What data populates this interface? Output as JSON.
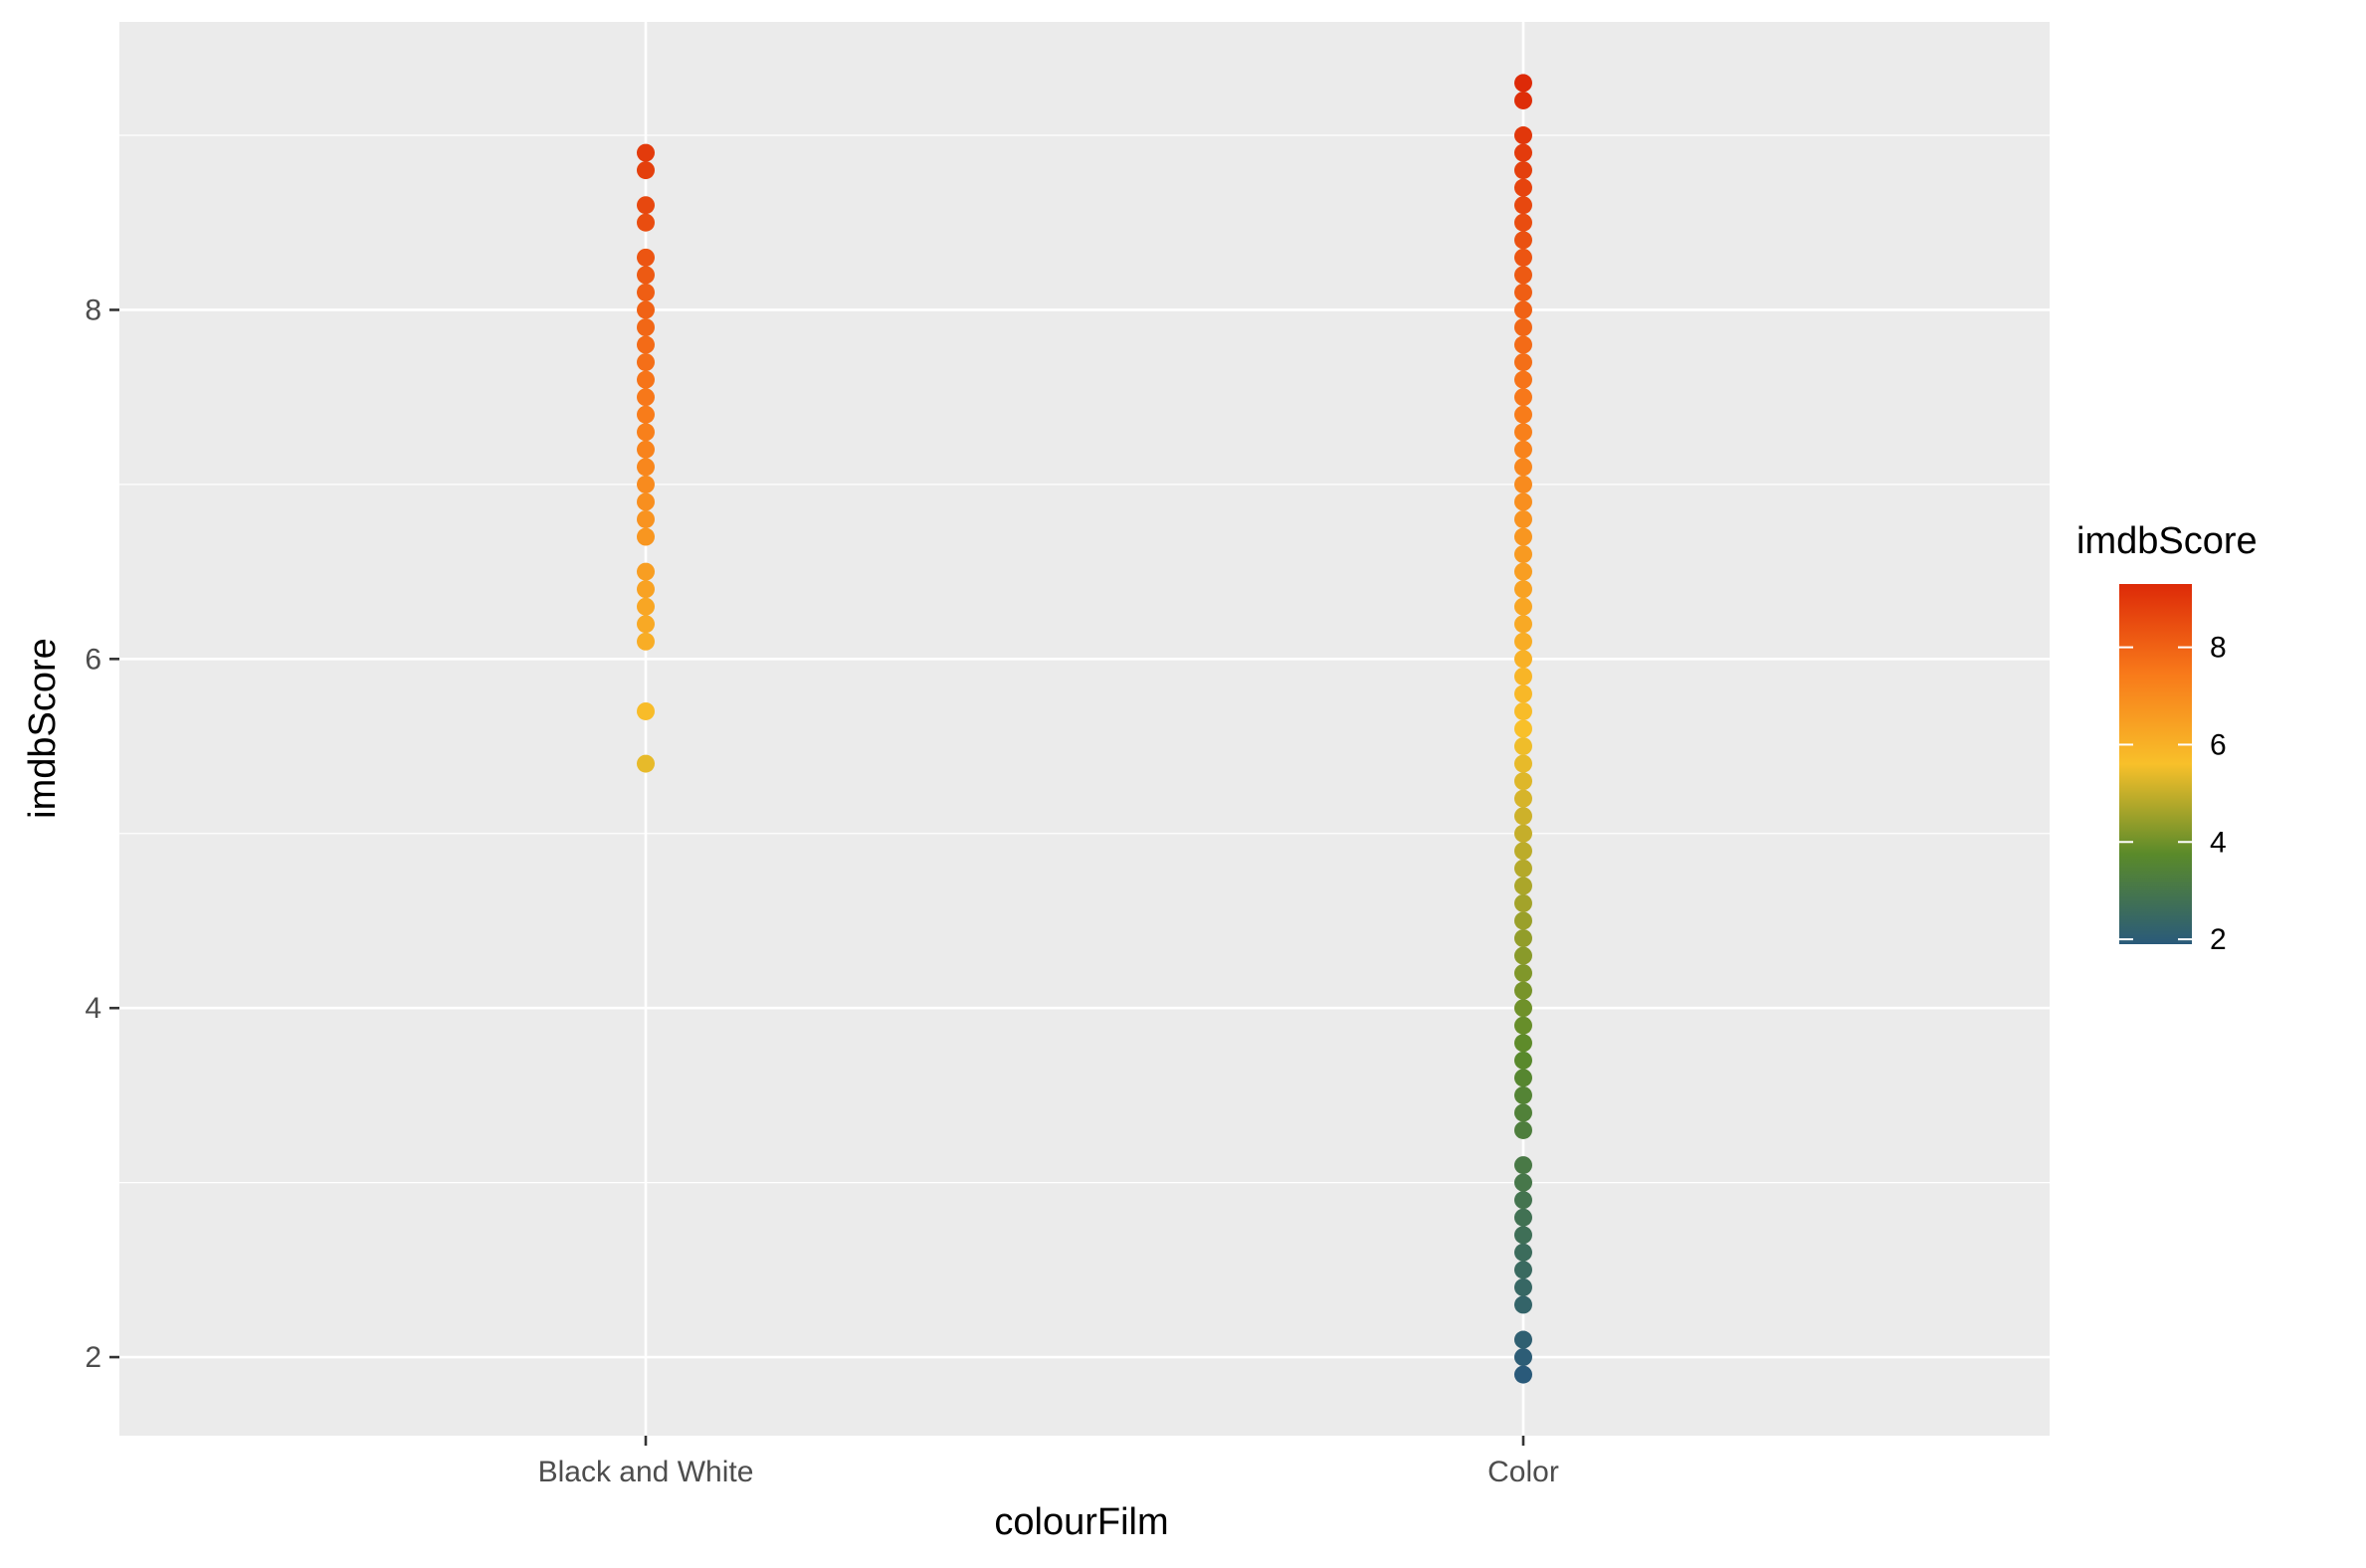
{
  "chart_data": {
    "type": "scatter",
    "xlabel": "colourFilm",
    "ylabel": "imdbScore",
    "categories": [
      "Black and White",
      "Color"
    ],
    "ylim": [
      1.55,
      9.65
    ],
    "y_ticks": [
      2,
      4,
      6,
      8
    ],
    "grid": true,
    "legend_placement": "right",
    "legend": {
      "title": "imdbScore",
      "ticks": [
        2,
        4,
        6,
        8
      ],
      "range": [
        1.9,
        9.3
      ],
      "gradient_colors": [
        "#2a5a7a",
        "#5a8a2a",
        "#f8c02a",
        "#f87a1a",
        "#dd2a08"
      ]
    },
    "series": [
      {
        "category": "Black and White",
        "y": [
          5.4,
          5.7,
          6.1,
          6.2,
          6.3,
          6.4,
          6.5,
          6.7,
          6.8,
          6.9,
          7.0,
          7.1,
          7.2,
          7.3,
          7.4,
          7.5,
          7.6,
          7.7,
          7.8,
          7.9,
          8.0,
          8.1,
          8.2,
          8.3,
          8.5,
          8.6,
          8.8,
          8.9
        ]
      },
      {
        "category": "Color",
        "y": [
          1.9,
          2.0,
          2.1,
          2.3,
          2.4,
          2.5,
          2.6,
          2.7,
          2.8,
          2.9,
          3.0,
          3.1,
          3.3,
          3.4,
          3.5,
          3.6,
          3.7,
          3.8,
          3.9,
          4.0,
          4.1,
          4.2,
          4.3,
          4.4,
          4.5,
          4.6,
          4.7,
          4.8,
          4.9,
          5.0,
          5.1,
          5.2,
          5.3,
          5.4,
          5.5,
          5.6,
          5.7,
          5.8,
          5.9,
          6.0,
          6.1,
          6.2,
          6.3,
          6.4,
          6.5,
          6.6,
          6.7,
          6.8,
          6.9,
          7.0,
          7.1,
          7.2,
          7.3,
          7.4,
          7.5,
          7.6,
          7.7,
          7.8,
          7.9,
          8.0,
          8.1,
          8.2,
          8.3,
          8.4,
          8.5,
          8.6,
          8.7,
          8.8,
          8.9,
          9.0,
          9.2,
          9.3
        ]
      }
    ]
  }
}
